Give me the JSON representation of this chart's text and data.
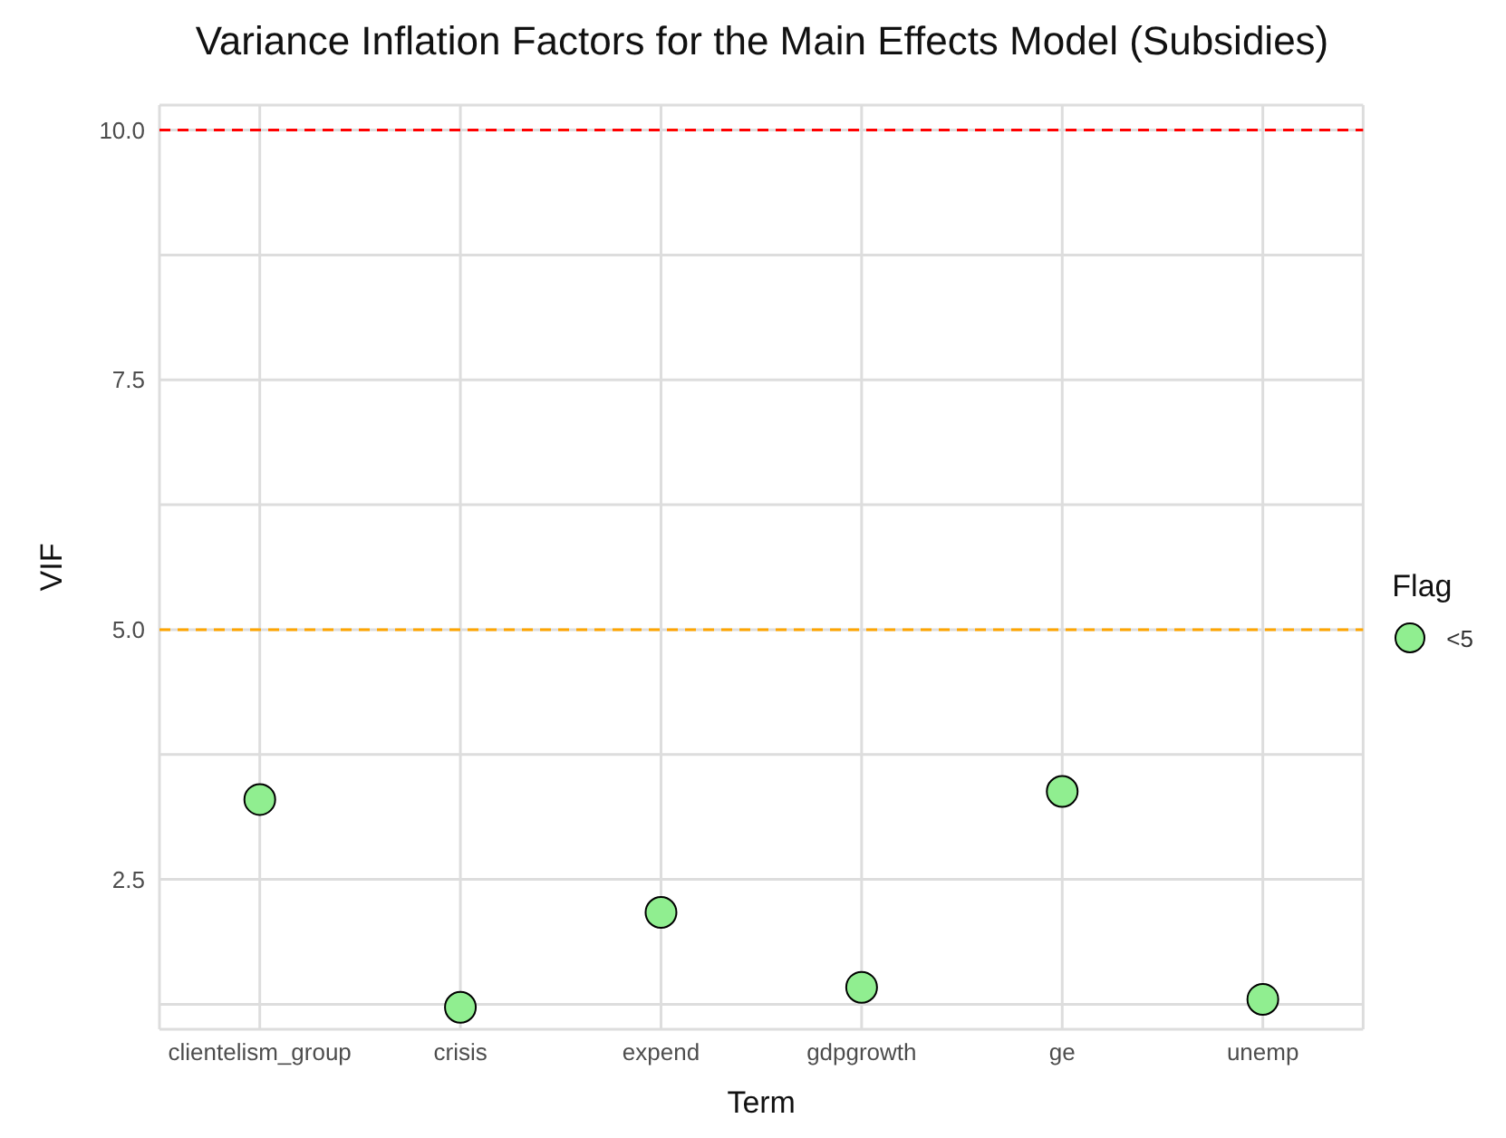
{
  "chart_data": {
    "type": "scatter",
    "title": "Variance Inflation Factors for the Main Effects Model (Subsidies)",
    "xlabel": "Term",
    "ylabel": "VIF",
    "legend_title": "Flag",
    "categories": [
      "clientelism_group",
      "crisis",
      "expend",
      "gdpgrowth",
      "ge",
      "unemp"
    ],
    "series": [
      {
        "name": "<5",
        "color": "#90ee90",
        "values": [
          3.3,
          1.22,
          2.17,
          1.42,
          3.38,
          1.3
        ]
      }
    ],
    "ylim": [
      1.0,
      10.25
    ],
    "yticks": [
      {
        "value": 1.25,
        "label": null
      },
      {
        "value": 2.5,
        "label": "2.5"
      },
      {
        "value": 3.75,
        "label": null
      },
      {
        "value": 5,
        "label": "5.0"
      },
      {
        "value": 6.25,
        "label": null
      },
      {
        "value": 7.5,
        "label": "7.5"
      },
      {
        "value": 8.75,
        "label": null
      },
      {
        "value": 10,
        "label": "10.0"
      }
    ],
    "ref_lines": [
      {
        "axis": "y",
        "value": 10,
        "color": "#ff0000",
        "line_style": "dashed"
      },
      {
        "axis": "y",
        "value": 5,
        "color": "#ffa500",
        "line_style": "dashed"
      }
    ],
    "grid": true,
    "legend": "right",
    "marker": "circle"
  }
}
